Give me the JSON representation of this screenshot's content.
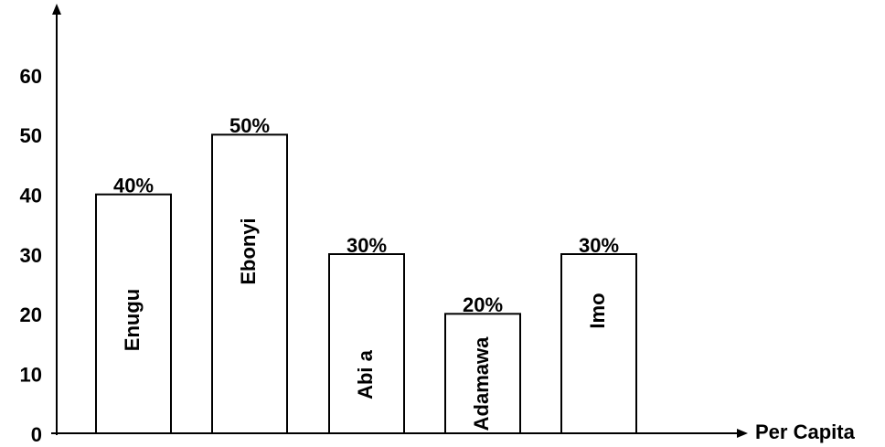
{
  "chart_data": {
    "type": "bar",
    "x_label": "Per Capita",
    "categories": [
      "Enugu",
      "Ebonyi",
      "Abi a",
      "Adamawa",
      "Imo"
    ],
    "values": [
      40,
      50,
      30,
      20,
      30
    ],
    "value_labels": [
      "40%",
      "50%",
      "30%",
      "20%",
      "30%"
    ],
    "color": "#ffffff",
    "ylim": [
      0,
      60
    ],
    "yticks": [
      0,
      10,
      20,
      30,
      40,
      50,
      60
    ],
    "grid": false
  }
}
